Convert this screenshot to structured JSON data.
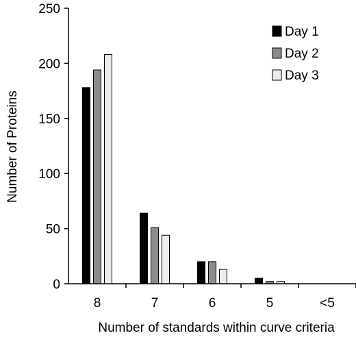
{
  "chart_data": {
    "type": "bar",
    "title": "",
    "xlabel": "Number of standards within curve criteria",
    "ylabel": "Number of Proteins",
    "categories": [
      "8",
      "7",
      "6",
      "5",
      "<5"
    ],
    "ylim": [
      0,
      250
    ],
    "yticks": [
      0,
      50,
      100,
      150,
      200,
      250
    ],
    "grid": false,
    "legend_position": "top-right",
    "series": [
      {
        "name": "Day 1",
        "values": [
          178,
          64,
          20,
          5,
          0
        ],
        "color": "#000000"
      },
      {
        "name": "Day 2",
        "values": [
          194,
          51,
          20,
          2,
          0
        ],
        "color": "#8c8c8c"
      },
      {
        "name": "Day 3",
        "values": [
          208,
          44,
          13,
          2,
          0
        ],
        "color": "#ececec"
      }
    ]
  }
}
